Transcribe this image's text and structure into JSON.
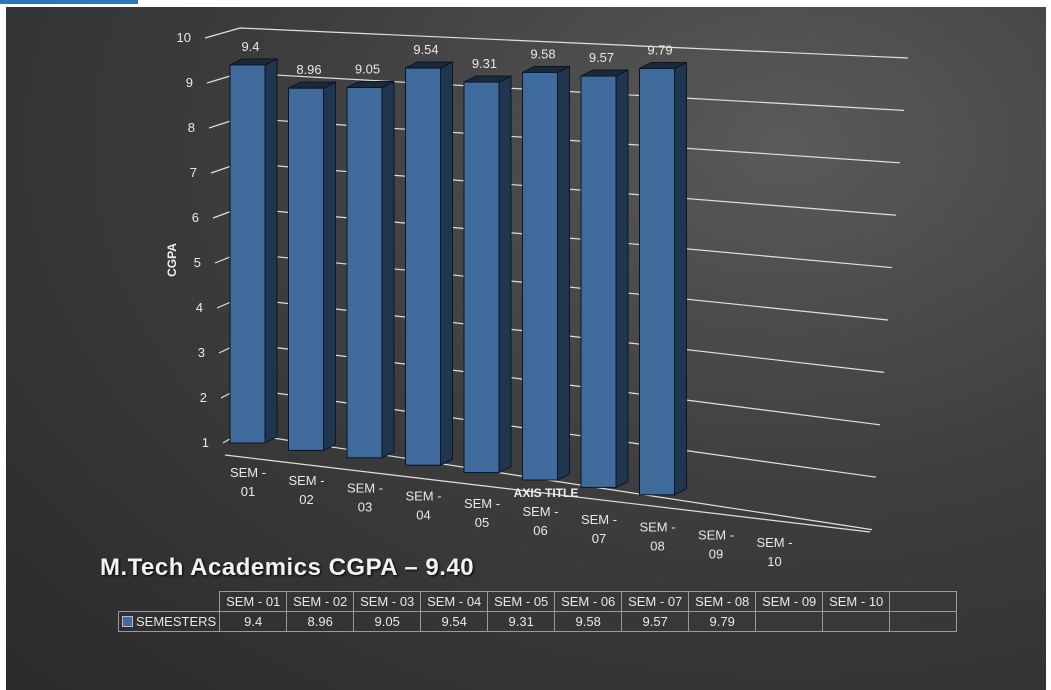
{
  "chart_data": {
    "type": "bar",
    "title": "M.Tech Academics CGPA – 9.40",
    "ylabel": "CGPA",
    "xlabel": "AXIS TITLE",
    "ylim": [
      1,
      10
    ],
    "yticks": [
      "1",
      "2",
      "3",
      "4",
      "5",
      "6",
      "7",
      "8",
      "9",
      "10"
    ],
    "categories": [
      "SEM - 01",
      "SEM - 02",
      "SEM - 03",
      "SEM - 04",
      "SEM - 05",
      "SEM - 06",
      "SEM - 07",
      "SEM - 08",
      "SEM - 09",
      "SEM - 10"
    ],
    "series": [
      {
        "name": "SEMESTERS",
        "values": [
          9.4,
          8.96,
          9.05,
          9.54,
          9.31,
          9.58,
          9.57,
          9.79,
          null,
          null
        ]
      }
    ],
    "value_labels": [
      "9.4",
      "8.96",
      "9.05",
      "9.54",
      "9.31",
      "9.58",
      "9.57",
      "9.79"
    ],
    "grid": true,
    "legend": "data-table",
    "style": "3d-column",
    "colors": {
      "bar_front": "#3f6a9c",
      "bar_side": "#1f3550",
      "bar_top": "#1a2a3c",
      "background": "#3e3e3e",
      "text": "#e8e8e8"
    }
  }
}
